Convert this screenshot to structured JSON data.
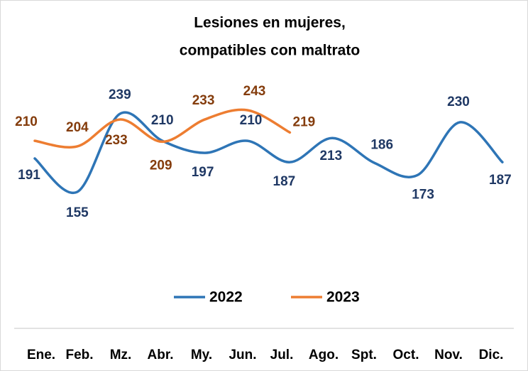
{
  "chart_data": {
    "type": "line",
    "title": [
      "Lesiones en mujeres,",
      "compatibles con maltrato"
    ],
    "categories": [
      "Ene.",
      "Feb.",
      "Mz.",
      "Abr.",
      "My.",
      "Jun.",
      "Jul.",
      "Ago.",
      "Spt.",
      "Oct.",
      "Nov.",
      "Dic."
    ],
    "series": [
      {
        "name": "2022",
        "color": "#2e75b6",
        "label_color": "#1f3864",
        "values": [
          191,
          155,
          239,
          210,
          197,
          210,
          187,
          213,
          186,
          173,
          230,
          187
        ]
      },
      {
        "name": "2023",
        "color": "#ed7d31",
        "label_color": "#843c0c",
        "values": [
          210,
          204,
          233,
          209,
          233,
          243,
          219,
          null,
          null,
          null,
          null,
          null
        ]
      }
    ],
    "legend": "bottom"
  }
}
